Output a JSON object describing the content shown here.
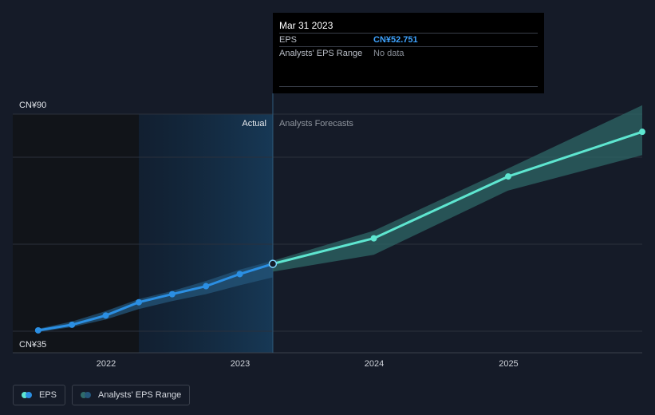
{
  "chart_data": {
    "type": "line",
    "x_ticks": [
      "2022",
      "2023",
      "2024",
      "2025"
    ],
    "y_ticks": [
      "CN¥35",
      "CN¥90"
    ],
    "ylim": [
      35,
      90
    ],
    "regions": {
      "past_label": "Actual",
      "forecast_label": "Analysts Forecasts"
    },
    "series": [
      {
        "name": "EPS",
        "points": [
          {
            "x": "2021-06-30",
            "y": 36.2
          },
          {
            "x": "2021-09-30",
            "y": 37.6
          },
          {
            "x": "2021-12-31",
            "y": 39.9
          },
          {
            "x": "2022-03-31",
            "y": 43.2
          },
          {
            "x": "2022-06-30",
            "y": 45.2
          },
          {
            "x": "2022-09-30",
            "y": 47.2
          },
          {
            "x": "2022-12-31",
            "y": 50.2
          },
          {
            "x": "2023-03-31",
            "y": 52.751
          }
        ]
      },
      {
        "name": "EPS forecast",
        "points": [
          {
            "x": "2023-03-31",
            "y": 52.751
          },
          {
            "x": "2023-12-31",
            "y": 59.1
          },
          {
            "x": "2024-12-31",
            "y": 74.5
          },
          {
            "x": "2025-12-31",
            "y": 85.6
          }
        ]
      }
    ],
    "range_band": {
      "name": "Analysts' EPS Range",
      "points": [
        {
          "x": "2023-03-31",
          "high": 53.5,
          "low": 50.8
        },
        {
          "x": "2023-12-31",
          "high": 61.0,
          "low": 55.0
        },
        {
          "x": "2024-12-31",
          "high": 76.5,
          "low": 71.0
        },
        {
          "x": "2025-12-31",
          "high": 92.2,
          "low": 79.8
        }
      ]
    },
    "past_band": {
      "points": [
        {
          "x": "2021-06-30",
          "high": 36.6,
          "low": 35.8
        },
        {
          "x": "2021-09-30",
          "high": 38.4,
          "low": 37.0
        },
        {
          "x": "2021-12-31",
          "high": 41.0,
          "low": 38.9
        },
        {
          "x": "2022-03-31",
          "high": 44.0,
          "low": 41.5
        },
        {
          "x": "2022-06-30",
          "high": 46.0,
          "low": 43.5
        },
        {
          "x": "2022-09-30",
          "high": 48.5,
          "low": 45.2
        },
        {
          "x": "2022-12-31",
          "high": 51.3,
          "low": 47.4
        },
        {
          "x": "2023-03-31",
          "high": 53.5,
          "low": 49.4
        }
      ]
    },
    "colors": {
      "eps_actual": "#2b8fe3",
      "eps_forecast": "#5ee6d0",
      "range_band": "#2f6b6a",
      "actual_shade": "#16314a"
    }
  },
  "tooltip": {
    "date": "Mar 31 2023",
    "eps_label": "EPS",
    "eps_value": "CN¥52.751",
    "range_label": "Analysts' EPS Range",
    "range_value": "No data"
  },
  "legend": {
    "eps_label": "EPS",
    "range_label": "Analysts' EPS Range"
  }
}
